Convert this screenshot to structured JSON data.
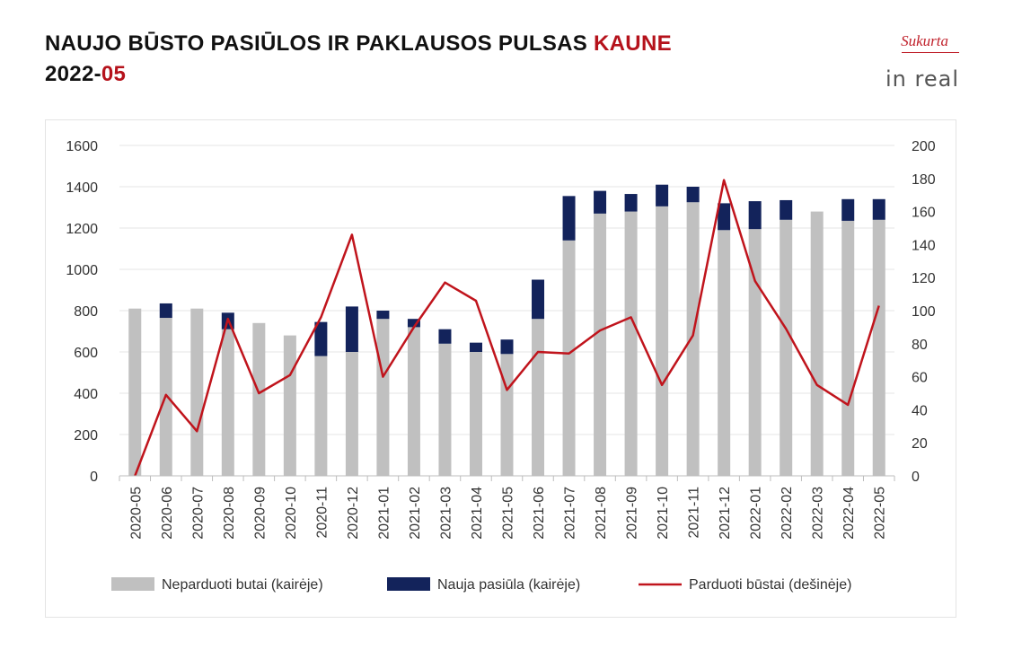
{
  "header": {
    "title_main": "NAUJO BŪSTO PASIŪLOS IR PAKLAUSOS PULSAS ",
    "title_accent": "KAUNE",
    "period_main": "2022-",
    "period_accent": "05"
  },
  "logo": {
    "subtitle": "Sukurta",
    "name": "in real"
  },
  "colors": {
    "unsold": "#c0c0c0",
    "new_supply": "#13235b",
    "sold": "#c0141c",
    "accent": "#b5121b"
  },
  "chart_data": {
    "type": "bar",
    "stacked": true,
    "categories": [
      "2020-05",
      "2020-06",
      "2020-07",
      "2020-08",
      "2020-09",
      "2020-10",
      "2020-11",
      "2020-12",
      "2021-01",
      "2021-02",
      "2021-03",
      "2021-04",
      "2021-05",
      "2021-06",
      "2021-07",
      "2021-08",
      "2021-09",
      "2021-10",
      "2021-11",
      "2021-12",
      "2022-01",
      "2022-02",
      "2022-03",
      "2022-04",
      "2022-05"
    ],
    "series": [
      {
        "name": "Neparduoti butai (kairėje)",
        "axis": "left",
        "type": "bar",
        "values": [
          810,
          765,
          810,
          710,
          740,
          680,
          580,
          600,
          760,
          720,
          640,
          600,
          590,
          760,
          1140,
          1270,
          1280,
          1305,
          1325,
          1190,
          1195,
          1240,
          1280,
          1235,
          1240
        ]
      },
      {
        "name": "Nauja pasiūla (kairėje)",
        "axis": "left",
        "type": "bar",
        "values": [
          0,
          70,
          0,
          80,
          0,
          0,
          165,
          220,
          40,
          40,
          70,
          45,
          70,
          190,
          215,
          110,
          85,
          105,
          75,
          130,
          135,
          95,
          0,
          105,
          100
        ]
      },
      {
        "name": "Parduoti būstai (dešinėje)",
        "axis": "right",
        "type": "line",
        "values": [
          0,
          49,
          27,
          95,
          50,
          61,
          96,
          146,
          60,
          90,
          117,
          106,
          52,
          75,
          74,
          88,
          96,
          55,
          85,
          179,
          118,
          89,
          55,
          43,
          103
        ]
      }
    ],
    "y_left": {
      "min": 0,
      "max": 1600,
      "ticks": [
        0,
        200,
        400,
        600,
        800,
        1000,
        1200,
        1400,
        1600
      ]
    },
    "y_right": {
      "min": 0,
      "max": 200,
      "ticks": [
        0,
        20,
        40,
        60,
        80,
        100,
        120,
        140,
        160,
        180,
        200
      ]
    },
    "grid": true,
    "legend_position": "bottom"
  }
}
